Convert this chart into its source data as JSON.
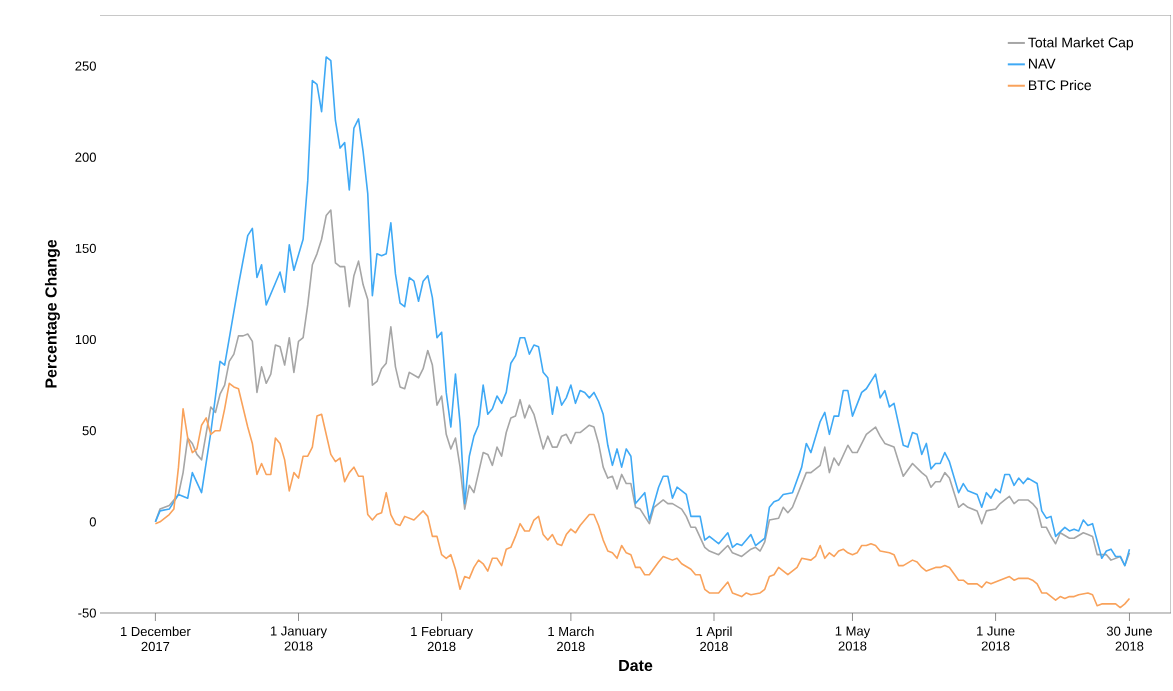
{
  "chart_data": {
    "type": "line",
    "xlabel": "Date",
    "ylabel": "Percentage Change",
    "xlim": [
      "2017-11-19",
      "2018-07-09"
    ],
    "ylim": [
      -50,
      278
    ],
    "xticks": [
      {
        "value": "2017-12-01",
        "label": "1 December 2017"
      },
      {
        "value": "2018-01-01",
        "label": "1 January 2018"
      },
      {
        "value": "2018-02-01",
        "label": "1 February 2018"
      },
      {
        "value": "2018-03-01",
        "label": "1 March 2018"
      },
      {
        "value": "2018-04-01",
        "label": "1 April 2018"
      },
      {
        "value": "2018-05-01",
        "label": "1 May 2018"
      },
      {
        "value": "2018-06-01",
        "label": "1 June 2018"
      },
      {
        "value": "2018-06-30",
        "label": "30 June 2018"
      }
    ],
    "yticks": [
      -50,
      0,
      50,
      100,
      150,
      200,
      250
    ],
    "legend": "top right",
    "series": [
      {
        "name": "Total Market Cap",
        "color": "#a6a6a6",
        "x": [
          "2017-12-01",
          "2017-12-02",
          "2017-12-04",
          "2017-12-06",
          "2017-12-07",
          "2017-12-08",
          "2017-12-09",
          "2017-12-10",
          "2017-12-11",
          "2017-12-13",
          "2017-12-14",
          "2017-12-15",
          "2017-12-16",
          "2017-12-17",
          "2017-12-18",
          "2017-12-19",
          "2017-12-20",
          "2017-12-21",
          "2017-12-22",
          "2017-12-23",
          "2017-12-24",
          "2017-12-25",
          "2017-12-26",
          "2017-12-27",
          "2017-12-28",
          "2017-12-29",
          "2017-12-30",
          "2017-12-31",
          "2018-01-01",
          "2018-01-02",
          "2018-01-03",
          "2018-01-04",
          "2018-01-05",
          "2018-01-06",
          "2018-01-07",
          "2018-01-08",
          "2018-01-09",
          "2018-01-10",
          "2018-01-11",
          "2018-01-12",
          "2018-01-13",
          "2018-01-14",
          "2018-01-15",
          "2018-01-16",
          "2018-01-17",
          "2018-01-18",
          "2018-01-19",
          "2018-01-20",
          "2018-01-21",
          "2018-01-22",
          "2018-01-23",
          "2018-01-24",
          "2018-01-25",
          "2018-01-27",
          "2018-01-28",
          "2018-01-29",
          "2018-01-30",
          "2018-01-31",
          "2018-02-01",
          "2018-02-02",
          "2018-02-03",
          "2018-02-04",
          "2018-02-05",
          "2018-02-06",
          "2018-02-07",
          "2018-02-08",
          "2018-02-10",
          "2018-02-11",
          "2018-02-12",
          "2018-02-13",
          "2018-02-14",
          "2018-02-15",
          "2018-02-16",
          "2018-02-17",
          "2018-02-18",
          "2018-02-19",
          "2018-02-20",
          "2018-02-21",
          "2018-02-23",
          "2018-02-24",
          "2018-02-25",
          "2018-02-26",
          "2018-02-27",
          "2018-02-28",
          "2018-03-01",
          "2018-03-02",
          "2018-03-03",
          "2018-03-04",
          "2018-03-05",
          "2018-03-06",
          "2018-03-07",
          "2018-03-08",
          "2018-03-09",
          "2018-03-10",
          "2018-03-11",
          "2018-03-12",
          "2018-03-13",
          "2018-03-14",
          "2018-03-15",
          "2018-03-16",
          "2018-03-18",
          "2018-03-19",
          "2018-03-21",
          "2018-03-22",
          "2018-03-23",
          "2018-03-25",
          "2018-03-26",
          "2018-03-27",
          "2018-03-28",
          "2018-03-30",
          "2018-03-31",
          "2018-04-02",
          "2018-04-04",
          "2018-04-05",
          "2018-04-07",
          "2018-04-09",
          "2018-04-10",
          "2018-04-11",
          "2018-04-12",
          "2018-04-13",
          "2018-04-15",
          "2018-04-16",
          "2018-04-17",
          "2018-04-18",
          "2018-04-21",
          "2018-04-22",
          "2018-04-24",
          "2018-04-25",
          "2018-04-26",
          "2018-04-27",
          "2018-04-28",
          "2018-04-30",
          "2018-05-01",
          "2018-05-02",
          "2018-05-04",
          "2018-05-06",
          "2018-05-07",
          "2018-05-08",
          "2018-05-10",
          "2018-05-11",
          "2018-05-12",
          "2018-05-14",
          "2018-05-16",
          "2018-05-17",
          "2018-05-18",
          "2018-05-19",
          "2018-05-20",
          "2018-05-21",
          "2018-05-22",
          "2018-05-24",
          "2018-05-25",
          "2018-05-26",
          "2018-05-28",
          "2018-05-29",
          "2018-05-30",
          "2018-06-01",
          "2018-06-02",
          "2018-06-03",
          "2018-06-04",
          "2018-06-05",
          "2018-06-06",
          "2018-06-08",
          "2018-06-09",
          "2018-06-10",
          "2018-06-11",
          "2018-06-12",
          "2018-06-13",
          "2018-06-14",
          "2018-06-15",
          "2018-06-17",
          "2018-06-18",
          "2018-06-20",
          "2018-06-21",
          "2018-06-22",
          "2018-06-23",
          "2018-06-24",
          "2018-06-25",
          "2018-06-26",
          "2018-06-28",
          "2018-06-29",
          "2018-06-30"
        ],
        "values": [
          0,
          7,
          9,
          15,
          27,
          46,
          43,
          37,
          34,
          63,
          60,
          70,
          75,
          88,
          92,
          102,
          102,
          103,
          99,
          71,
          85,
          76,
          81,
          97,
          96,
          86,
          101,
          82,
          99,
          101,
          119,
          141,
          147,
          155,
          168,
          171,
          142,
          140,
          140,
          118,
          135,
          143,
          130,
          122,
          75,
          77,
          84,
          87,
          107,
          85,
          74,
          73,
          82,
          79,
          84,
          94,
          86,
          64,
          69,
          48,
          40,
          46,
          30,
          7,
          20,
          16,
          38,
          37,
          31,
          41,
          36,
          49,
          57,
          58,
          67,
          57,
          64,
          59,
          40,
          47,
          41,
          41,
          47,
          48,
          43,
          49,
          49,
          51,
          53,
          52,
          43,
          30,
          24,
          25,
          18,
          26,
          21,
          21,
          8,
          7,
          -1,
          8,
          12,
          10,
          10,
          7,
          3,
          -3,
          -3,
          -14,
          -16,
          -18,
          -13,
          -17,
          -19,
          -15,
          -14,
          -16,
          -11,
          1,
          2,
          8,
          5,
          8,
          27,
          27,
          31,
          41,
          27,
          35,
          31,
          42,
          38,
          38,
          48,
          52,
          47,
          43,
          41,
          33,
          25,
          32,
          27,
          25,
          19,
          22,
          22,
          27,
          24,
          8,
          10,
          8,
          6,
          -1,
          6,
          7,
          10,
          12,
          14,
          10,
          12,
          12,
          10,
          7,
          -3,
          -3,
          -8,
          -12,
          -6,
          -9,
          -9,
          -6,
          -7,
          -8,
          -18,
          -18,
          -18,
          -21,
          -19,
          -24,
          -17
        ]
      },
      {
        "name": "NAV",
        "color": "#3fa9f5",
        "x": [
          "2017-12-01",
          "2017-12-02",
          "2017-12-04",
          "2017-12-06",
          "2017-12-08",
          "2017-12-09",
          "2017-12-11",
          "2017-12-13",
          "2017-12-15",
          "2017-12-16",
          "2017-12-19",
          "2017-12-21",
          "2017-12-22",
          "2017-12-23",
          "2017-12-24",
          "2017-12-25",
          "2017-12-27",
          "2017-12-28",
          "2017-12-29",
          "2017-12-30",
          "2017-12-31",
          "2018-01-02",
          "2018-01-03",
          "2018-01-04",
          "2018-01-05",
          "2018-01-06",
          "2018-01-07",
          "2018-01-08",
          "2018-01-09",
          "2018-01-10",
          "2018-01-11",
          "2018-01-12",
          "2018-01-13",
          "2018-01-14",
          "2018-01-15",
          "2018-01-16",
          "2018-01-17",
          "2018-01-18",
          "2018-01-19",
          "2018-01-20",
          "2018-01-21",
          "2018-01-22",
          "2018-01-23",
          "2018-01-24",
          "2018-01-25",
          "2018-01-26",
          "2018-01-27",
          "2018-01-28",
          "2018-01-29",
          "2018-01-30",
          "2018-01-31",
          "2018-02-01",
          "2018-02-02",
          "2018-02-03",
          "2018-02-04",
          "2018-02-05",
          "2018-02-06",
          "2018-02-07",
          "2018-02-08",
          "2018-02-09",
          "2018-02-10",
          "2018-02-11",
          "2018-02-12",
          "2018-02-13",
          "2018-02-14",
          "2018-02-15",
          "2018-02-16",
          "2018-02-17",
          "2018-02-18",
          "2018-02-19",
          "2018-02-20",
          "2018-02-21",
          "2018-02-22",
          "2018-02-23",
          "2018-02-24",
          "2018-02-25",
          "2018-02-26",
          "2018-02-27",
          "2018-02-28",
          "2018-03-01",
          "2018-03-02",
          "2018-03-03",
          "2018-03-04",
          "2018-03-05",
          "2018-03-06",
          "2018-03-07",
          "2018-03-08",
          "2018-03-09",
          "2018-03-10",
          "2018-03-11",
          "2018-03-12",
          "2018-03-13",
          "2018-03-14",
          "2018-03-15",
          "2018-03-17",
          "2018-03-18",
          "2018-03-20",
          "2018-03-21",
          "2018-03-22",
          "2018-03-23",
          "2018-03-24",
          "2018-03-26",
          "2018-03-27",
          "2018-03-29",
          "2018-03-30",
          "2018-03-31",
          "2018-04-02",
          "2018-04-04",
          "2018-04-05",
          "2018-04-06",
          "2018-04-07",
          "2018-04-09",
          "2018-04-10",
          "2018-04-12",
          "2018-04-13",
          "2018-04-14",
          "2018-04-15",
          "2018-04-16",
          "2018-04-18",
          "2018-04-20",
          "2018-04-21",
          "2018-04-22",
          "2018-04-24",
          "2018-04-25",
          "2018-04-26",
          "2018-04-27",
          "2018-04-28",
          "2018-04-29",
          "2018-04-30",
          "2018-05-01",
          "2018-05-03",
          "2018-05-04",
          "2018-05-06",
          "2018-05-07",
          "2018-05-08",
          "2018-05-09",
          "2018-05-10",
          "2018-05-12",
          "2018-05-13",
          "2018-05-14",
          "2018-05-15",
          "2018-05-16",
          "2018-05-17",
          "2018-05-18",
          "2018-05-19",
          "2018-05-20",
          "2018-05-21",
          "2018-05-22",
          "2018-05-24",
          "2018-05-25",
          "2018-05-26",
          "2018-05-28",
          "2018-05-29",
          "2018-05-30",
          "2018-05-31",
          "2018-06-01",
          "2018-06-02",
          "2018-06-03",
          "2018-06-04",
          "2018-06-05",
          "2018-06-06",
          "2018-06-07",
          "2018-06-08",
          "2018-06-10",
          "2018-06-11",
          "2018-06-12",
          "2018-06-13",
          "2018-06-14",
          "2018-06-16",
          "2018-06-17",
          "2018-06-18",
          "2018-06-19",
          "2018-06-20",
          "2018-06-21",
          "2018-06-22",
          "2018-06-24",
          "2018-06-25",
          "2018-06-26",
          "2018-06-27",
          "2018-06-28",
          "2018-06-29",
          "2018-06-30"
        ],
        "values": [
          0,
          6,
          7,
          15,
          13,
          27,
          16,
          49,
          88,
          86,
          130,
          157,
          161,
          134,
          141,
          119,
          131,
          137,
          126,
          152,
          138,
          155,
          187,
          242,
          240,
          225,
          255,
          253,
          220,
          205,
          208,
          182,
          216,
          221,
          203,
          180,
          124,
          147,
          146,
          147,
          164,
          136,
          120,
          118,
          134,
          132,
          121,
          132,
          135,
          123,
          101,
          104,
          71,
          52,
          81,
          54,
          10,
          36,
          47,
          53,
          75,
          59,
          62,
          69,
          65,
          71,
          87,
          91,
          101,
          101,
          92,
          97,
          96,
          82,
          79,
          59,
          74,
          64,
          68,
          75,
          65,
          72,
          71,
          68,
          71,
          66,
          59,
          42,
          31,
          40,
          30,
          40,
          36,
          10,
          16,
          1,
          19,
          25,
          25,
          13,
          19,
          15,
          3,
          3,
          -10,
          -8,
          -12,
          -6,
          -14,
          -12,
          -13,
          -7,
          -13,
          -9,
          8,
          11,
          12,
          15,
          16,
          30,
          43,
          38,
          55,
          60,
          48,
          58,
          58,
          72,
          72,
          58,
          71,
          73,
          81,
          68,
          72,
          63,
          65,
          42,
          41,
          49,
          48,
          37,
          43,
          29,
          32,
          32,
          38,
          33,
          16,
          21,
          17,
          15,
          8,
          16,
          13,
          18,
          16,
          26,
          26,
          20,
          24,
          21,
          24,
          21,
          6,
          2,
          3,
          -8,
          -3,
          -5,
          -4,
          -5,
          1,
          -2,
          -1,
          -20,
          -16,
          -15,
          -19,
          -19,
          -24,
          -15
        ]
      },
      {
        "name": "BTC Price",
        "color": "#f9a25b",
        "x": [
          "2017-12-01",
          "2017-12-02",
          "2017-12-04",
          "2017-12-05",
          "2017-12-06",
          "2017-12-07",
          "2017-12-08",
          "2017-12-09",
          "2017-12-10",
          "2017-12-11",
          "2017-12-12",
          "2017-12-13",
          "2017-12-14",
          "2017-12-15",
          "2017-12-16",
          "2017-12-17",
          "2017-12-18",
          "2017-12-19",
          "2017-12-21",
          "2017-12-22",
          "2017-12-23",
          "2017-12-24",
          "2017-12-25",
          "2017-12-26",
          "2017-12-27",
          "2017-12-28",
          "2017-12-29",
          "2017-12-30",
          "2017-12-31",
          "2018-01-01",
          "2018-01-02",
          "2018-01-03",
          "2018-01-04",
          "2018-01-05",
          "2018-01-06",
          "2018-01-08",
          "2018-01-09",
          "2018-01-10",
          "2018-01-11",
          "2018-01-12",
          "2018-01-13",
          "2018-01-14",
          "2018-01-15",
          "2018-01-16",
          "2018-01-17",
          "2018-01-18",
          "2018-01-19",
          "2018-01-20",
          "2018-01-21",
          "2018-01-22",
          "2018-01-23",
          "2018-01-24",
          "2018-01-26",
          "2018-01-28",
          "2018-01-29",
          "2018-01-30",
          "2018-01-31",
          "2018-02-01",
          "2018-02-02",
          "2018-02-03",
          "2018-02-04",
          "2018-02-05",
          "2018-02-06",
          "2018-02-07",
          "2018-02-08",
          "2018-02-09",
          "2018-02-10",
          "2018-02-11",
          "2018-02-12",
          "2018-02-13",
          "2018-02-14",
          "2018-02-15",
          "2018-02-16",
          "2018-02-17",
          "2018-02-18",
          "2018-02-19",
          "2018-02-20",
          "2018-02-21",
          "2018-02-22",
          "2018-02-23",
          "2018-02-24",
          "2018-02-25",
          "2018-02-26",
          "2018-02-27",
          "2018-02-28",
          "2018-03-01",
          "2018-03-02",
          "2018-03-03",
          "2018-03-04",
          "2018-03-05",
          "2018-03-06",
          "2018-03-07",
          "2018-03-08",
          "2018-03-09",
          "2018-03-10",
          "2018-03-11",
          "2018-03-12",
          "2018-03-13",
          "2018-03-14",
          "2018-03-15",
          "2018-03-16",
          "2018-03-17",
          "2018-03-18",
          "2018-03-20",
          "2018-03-21",
          "2018-03-23",
          "2018-03-24",
          "2018-03-25",
          "2018-03-27",
          "2018-03-28",
          "2018-03-29",
          "2018-03-30",
          "2018-03-31",
          "2018-04-02",
          "2018-04-03",
          "2018-04-04",
          "2018-04-05",
          "2018-04-06",
          "2018-04-07",
          "2018-04-08",
          "2018-04-09",
          "2018-04-11",
          "2018-04-12",
          "2018-04-13",
          "2018-04-14",
          "2018-04-15",
          "2018-04-17",
          "2018-04-18",
          "2018-04-19",
          "2018-04-20",
          "2018-04-22",
          "2018-04-23",
          "2018-04-24",
          "2018-04-25",
          "2018-04-26",
          "2018-04-27",
          "2018-04-28",
          "2018-04-29",
          "2018-04-30",
          "2018-05-01",
          "2018-05-02",
          "2018-05-03",
          "2018-05-04",
          "2018-05-05",
          "2018-05-06",
          "2018-05-07",
          "2018-05-09",
          "2018-05-10",
          "2018-05-11",
          "2018-05-12",
          "2018-05-14",
          "2018-05-15",
          "2018-05-16",
          "2018-05-17",
          "2018-05-19",
          "2018-05-20",
          "2018-05-21",
          "2018-05-22",
          "2018-05-24",
          "2018-05-25",
          "2018-05-26",
          "2018-05-28",
          "2018-05-29",
          "2018-05-30",
          "2018-05-31",
          "2018-06-02",
          "2018-06-04",
          "2018-06-05",
          "2018-06-06",
          "2018-06-08",
          "2018-06-09",
          "2018-06-10",
          "2018-06-11",
          "2018-06-12",
          "2018-06-14",
          "2018-06-15",
          "2018-06-16",
          "2018-06-17",
          "2018-06-18",
          "2018-06-19",
          "2018-06-21",
          "2018-06-22",
          "2018-06-23",
          "2018-06-24",
          "2018-06-25",
          "2018-06-26",
          "2018-06-27",
          "2018-06-28",
          "2018-06-29",
          "2018-06-30"
        ],
        "values": [
          -1,
          0,
          4,
          7,
          30,
          62,
          46,
          38,
          40,
          53,
          57,
          48,
          50,
          50,
          62,
          76,
          74,
          73,
          52,
          43,
          26,
          32,
          26,
          26,
          46,
          43,
          34,
          17,
          27,
          24,
          36,
          36,
          41,
          58,
          59,
          37,
          33,
          35,
          22,
          27,
          30,
          25,
          25,
          4,
          1,
          4,
          5,
          16,
          4,
          -1,
          -2,
          3,
          1,
          6,
          3,
          -8,
          -8,
          -18,
          -20,
          -18,
          -26,
          -37,
          -30,
          -31,
          -25,
          -21,
          -23,
          -27,
          -20,
          -20,
          -24,
          -15,
          -14,
          -8,
          -1,
          -5,
          -5,
          1,
          3,
          -7,
          -10,
          -7,
          -12,
          -13,
          -7,
          -4,
          -6,
          -2,
          1,
          4,
          4,
          -2,
          -10,
          -16,
          -17,
          -20,
          -13,
          -17,
          -18,
          -25,
          -25,
          -29,
          -29,
          -22,
          -19,
          -21,
          -20,
          -23,
          -26,
          -29,
          -29,
          -37,
          -39,
          -39,
          -36,
          -33,
          -39,
          -40,
          -41,
          -39,
          -40,
          -39,
          -37,
          -30,
          -29,
          -25,
          -29,
          -27,
          -25,
          -20,
          -21,
          -19,
          -13,
          -20,
          -17,
          -19,
          -16,
          -15,
          -17,
          -18,
          -17,
          -13,
          -13,
          -12,
          -13,
          -16,
          -17,
          -18,
          -24,
          -24,
          -21,
          -22,
          -25,
          -27,
          -25,
          -25,
          -24,
          -25,
          -32,
          -32,
          -34,
          -34,
          -36,
          -33,
          -34,
          -32,
          -30,
          -32,
          -31,
          -31,
          -32,
          -34,
          -39,
          -39,
          -43,
          -41,
          -42,
          -41,
          -41,
          -40,
          -39,
          -40,
          -46,
          -45,
          -45,
          -45,
          -45,
          -47,
          -45,
          -42
        ]
      }
    ]
  }
}
